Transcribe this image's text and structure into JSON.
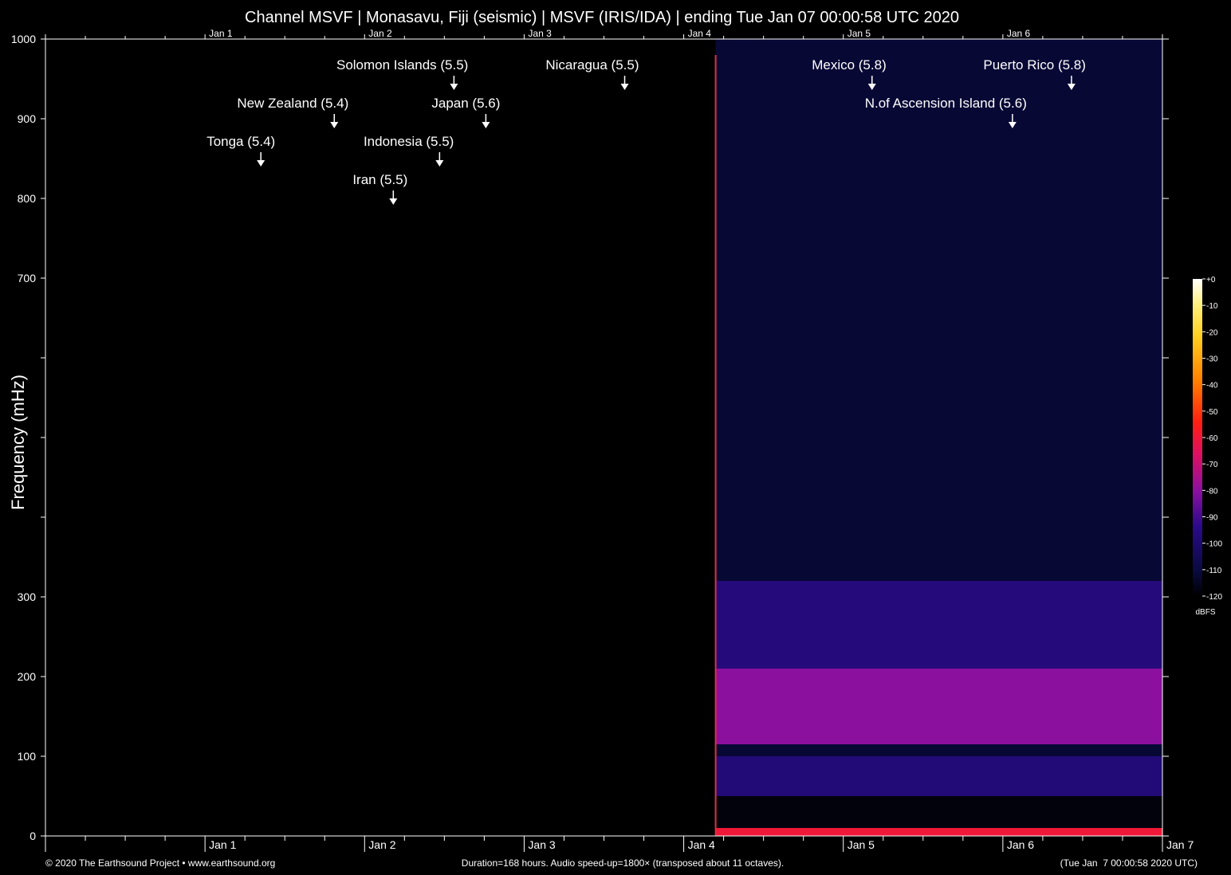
{
  "chart_data": {
    "type": "heatmap",
    "title": "Channel MSVF | Monasavu, Fiji (seismic) | MSVF (IRIS/IDA) | ending Tue Jan 07 00:00:58 UTC 2020",
    "ylabel": "Frequency (mHz)",
    "xlabel": "",
    "ylim": [
      0,
      1000
    ],
    "y_ticks": [
      0,
      100,
      200,
      300,
      400,
      500,
      600,
      700,
      800,
      900,
      1000
    ],
    "y_tick_labels": [
      "0",
      "100",
      "200",
      "300",
      "",
      "",
      "",
      "700",
      "800",
      "900",
      "1000"
    ],
    "x_range_days": [
      0,
      7
    ],
    "x_top_day_labels": [
      "Jan 1",
      "Jan 2",
      "Jan 3",
      "Jan 4",
      "Jan 5",
      "Jan 6"
    ],
    "x_bottom_day_labels": [
      "Jan 1",
      "Jan 2",
      "Jan 3",
      "Jan 4",
      "Jan 5",
      "Jan 6",
      "Jan 7"
    ],
    "data_start_day": 4.2,
    "intensity_bands": [
      {
        "from_mhz": 0,
        "to_mhz": 10,
        "level_dbfs": -60
      },
      {
        "from_mhz": 10,
        "to_mhz": 50,
        "level_dbfs": -118
      },
      {
        "from_mhz": 50,
        "to_mhz": 100,
        "level_dbfs": -98
      },
      {
        "from_mhz": 100,
        "to_mhz": 115,
        "level_dbfs": -112
      },
      {
        "from_mhz": 115,
        "to_mhz": 210,
        "level_dbfs": -80
      },
      {
        "from_mhz": 210,
        "to_mhz": 320,
        "level_dbfs": -97
      },
      {
        "from_mhz": 320,
        "to_mhz": 1000,
        "level_dbfs": -112
      }
    ],
    "events": [
      {
        "label": "Tonga (5.4)",
        "day": 1.35
      },
      {
        "label": "New Zealand (5.4)",
        "day": 1.81
      },
      {
        "label": "Iran (5.5)",
        "day": 2.18
      },
      {
        "label": "Indonesia (5.5)",
        "day": 2.47
      },
      {
        "label": "Solomon Islands (5.5)",
        "day": 2.56
      },
      {
        "label": "Japan (5.6)",
        "day": 2.76
      },
      {
        "label": "Nicaragua (5.5)",
        "day": 3.63
      },
      {
        "label": "Mexico (5.8)",
        "day": 5.18
      },
      {
        "label": "N.of Ascension Island (5.6)",
        "day": 6.06
      },
      {
        "label": "Puerto Rico (5.8)",
        "day": 6.43
      }
    ],
    "colorbar": {
      "unit": "dBFS",
      "ticks": [
        "+0",
        "-10",
        "-20",
        "-30",
        "-40",
        "-50",
        "-60",
        "-70",
        "-80",
        "-90",
        "-100",
        "-110",
        "-120"
      ],
      "range": [
        -120,
        0
      ]
    }
  },
  "footer": {
    "left": "© 2020 The Earthsound Project • www.earthsound.org",
    "center": "Duration=168 hours. Audio speed-up=1800× (transposed about 11 octaves).",
    "right": "(Tue Jan  7 00:00:58 2020 UTC)"
  }
}
